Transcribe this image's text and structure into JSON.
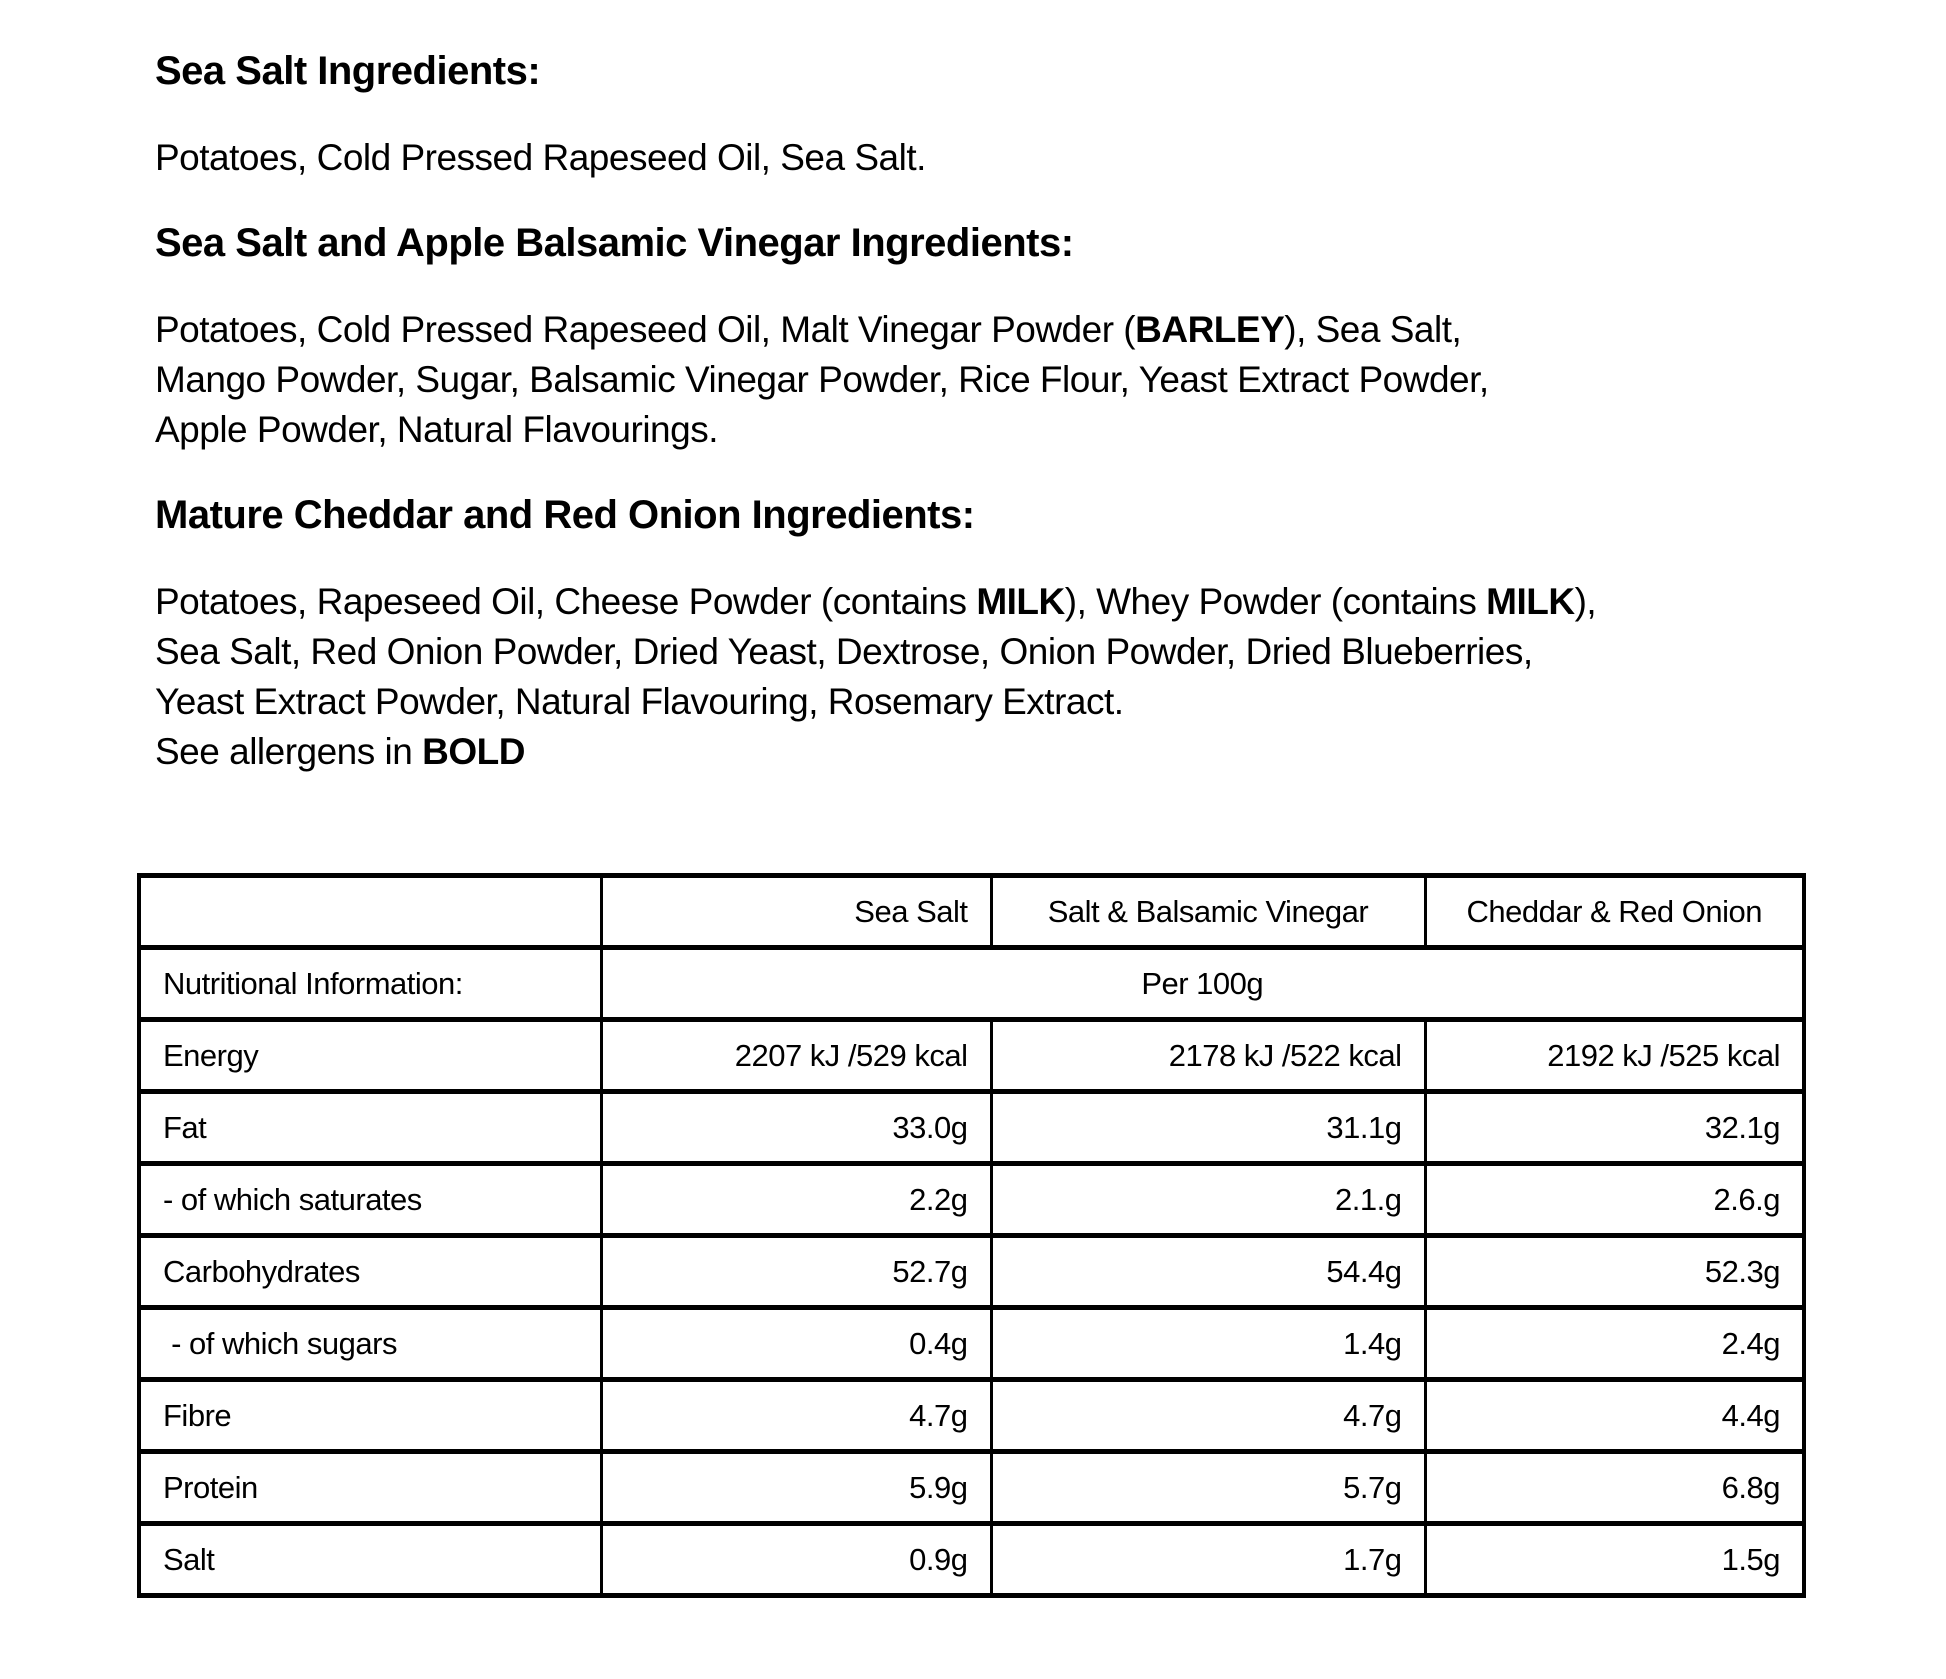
{
  "document": {
    "colors": {
      "background": "#ffffff",
      "text": "#000000",
      "table_border": "#000000"
    },
    "sections": [
      {
        "heading": "Sea Salt Ingredients:",
        "lines": [
          [
            {
              "text": "Potatoes, Cold Pressed Rapeseed Oil, Sea Salt.",
              "bold": false
            }
          ]
        ]
      },
      {
        "heading": "Sea Salt and Apple Balsamic Vinegar Ingredients:",
        "lines": [
          [
            {
              "text": "Potatoes, Cold Pressed Rapeseed Oil, Malt Vinegar Powder (",
              "bold": false
            },
            {
              "text": "BARLEY",
              "bold": true
            },
            {
              "text": "), Sea Salt,",
              "bold": false
            }
          ],
          [
            {
              "text": "Mango Powder, Sugar, Balsamic Vinegar Powder, Rice Flour, Yeast Extract Powder,",
              "bold": false
            }
          ],
          [
            {
              "text": "Apple Powder, Natural Flavourings.",
              "bold": false
            }
          ]
        ]
      },
      {
        "heading": "Mature Cheddar and Red Onion Ingredients:",
        "lines": [
          [
            {
              "text": "Potatoes, Rapeseed Oil, Cheese Powder (contains ",
              "bold": false
            },
            {
              "text": "MILK",
              "bold": true
            },
            {
              "text": "), Whey Powder (contains ",
              "bold": false
            },
            {
              "text": "MILK",
              "bold": true
            },
            {
              "text": "),",
              "bold": false
            }
          ],
          [
            {
              "text": "Sea Salt, Red Onion Powder, Dried Yeast, Dextrose, Onion Powder, Dried Blueberries,",
              "bold": false
            }
          ],
          [
            {
              "text": "Yeast Extract Powder, Natural Flavouring, Rosemary Extract.",
              "bold": false
            }
          ],
          [
            {
              "text": "See allergens in ",
              "bold": false
            },
            {
              "text": "BOLD",
              "bold": true
            }
          ]
        ]
      }
    ],
    "nutrition_table": {
      "column_headers": [
        "",
        "Sea Salt",
        "Salt & Balsamic Vinegar",
        "Cheddar & Red Onion"
      ],
      "info_label": "Nutritional Information:",
      "per_label": "Per 100g",
      "rows": [
        {
          "label": "Energy",
          "values": [
            "2207 kJ /529 kcal",
            "2178 kJ /522 kcal",
            "2192 kJ /525 kcal"
          ]
        },
        {
          "label": "Fat",
          "values": [
            "33.0g",
            "31.1g",
            "32.1g"
          ]
        },
        {
          "label": "- of which saturates",
          "values": [
            "2.2g",
            "2.1.g",
            "2.6.g"
          ]
        },
        {
          "label": "Carbohydrates",
          "values": [
            "52.7g",
            "54.4g",
            "52.3g"
          ]
        },
        {
          "label": " - of which sugars",
          "values": [
            "0.4g",
            "1.4g",
            "2.4g"
          ]
        },
        {
          "label": "Fibre",
          "values": [
            "4.7g",
            "4.7g",
            "4.4g"
          ]
        },
        {
          "label": "Protein",
          "values": [
            "5.9g",
            "5.7g",
            "6.8g"
          ]
        },
        {
          "label": "Salt",
          "values": [
            "0.9g",
            "1.7g",
            "1.5g"
          ]
        }
      ]
    }
  }
}
